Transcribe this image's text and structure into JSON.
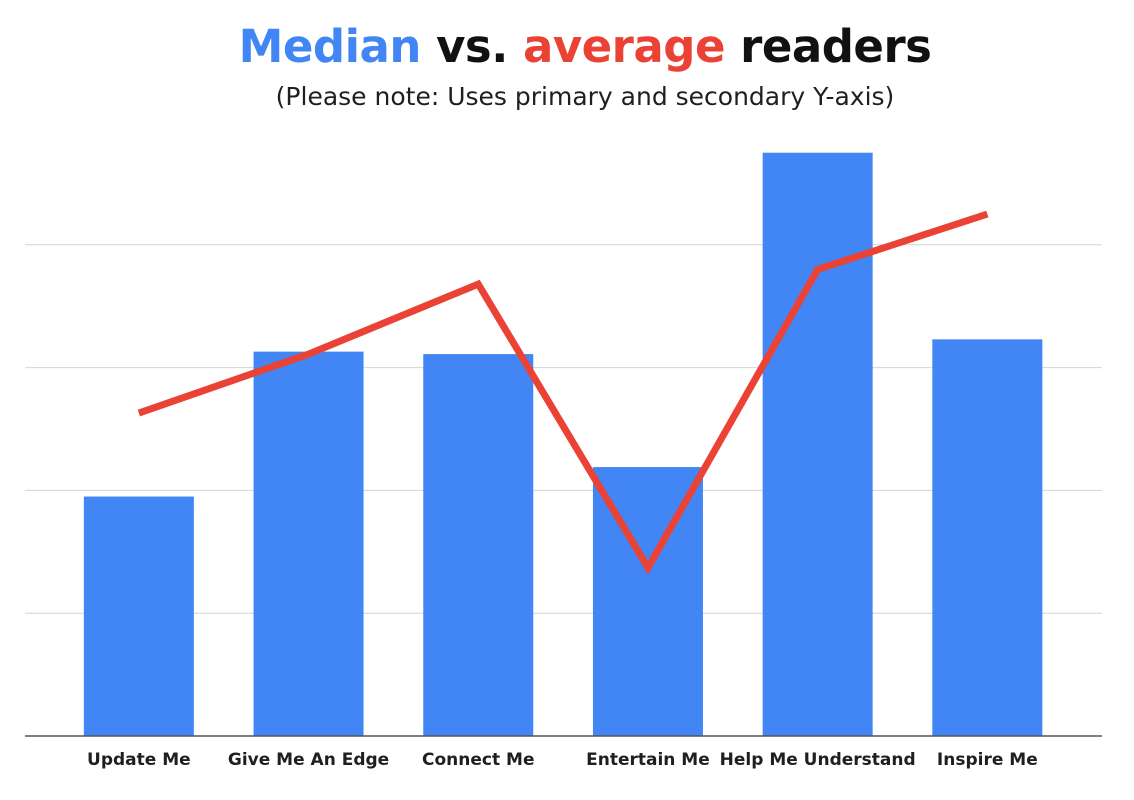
{
  "colors": {
    "median": "#4285f4",
    "average": "#ea4335",
    "title_text": "#111111",
    "grid": "#d4d4d4",
    "axis": "#555555"
  },
  "header": {
    "title_median": "Median",
    "title_vs": " vs. ",
    "title_average": "average",
    "title_rest": " readers",
    "subtitle": "(Please note: Uses primary and secondary Y-axis)"
  },
  "chart_data": {
    "type": "bar",
    "title": "Median vs. average readers",
    "subtitle": "(Please note: Uses primary and secondary Y-axis)",
    "categories": [
      "Update Me",
      "Give Me An Edge",
      "Connect Me",
      "Entertain Me",
      "Help Me Understand",
      "Inspire Me"
    ],
    "series": [
      {
        "kind": "bar",
        "axis": "primary",
        "color": "#4285f4",
        "values": [
          1.95,
          3.13,
          3.11,
          2.19,
          4.75,
          3.23
        ]
      },
      {
        "kind": "line",
        "axis": "secondary",
        "color": "#ea4335",
        "values": [
          2.63,
          3.11,
          3.68,
          1.37,
          3.8,
          4.25
        ]
      }
    ],
    "ylim": [
      0,
      5
    ],
    "grid": true,
    "legend": "none",
    "y_tick_labels_shown": false
  }
}
